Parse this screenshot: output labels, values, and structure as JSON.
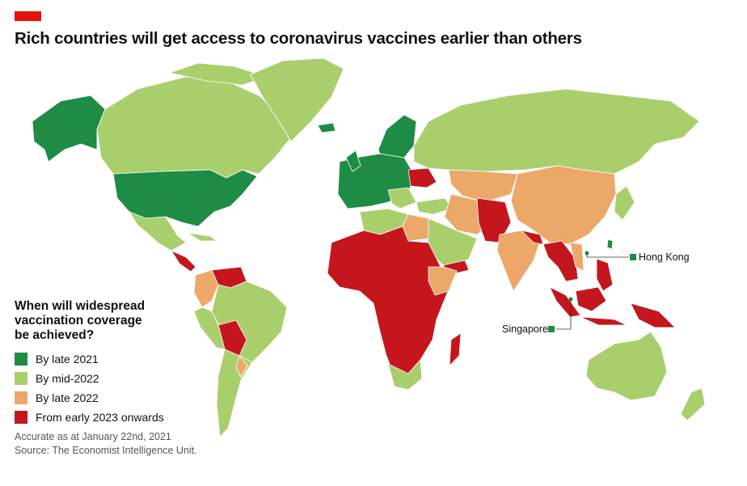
{
  "title": "Rich countries will get access to coronavirus vaccines earlier than others",
  "legend": {
    "heading": "When will widespread\nvaccination coverage\nbe achieved?",
    "items": [
      {
        "label": "By late 2021",
        "color": "#1e8c45"
      },
      {
        "label": "By mid-2022",
        "color": "#a9cf6d"
      },
      {
        "label": "By late 2022",
        "color": "#eca869"
      },
      {
        "label": "From early 2023 onwards",
        "color": "#c4161c"
      }
    ]
  },
  "callouts": {
    "hong_kong": "Hong Kong",
    "singapore": "Singapore"
  },
  "footnote": {
    "accuracy": "Accurate as at January 22nd, 2021",
    "source": "Source: The Economist Intelligence Unit."
  },
  "colors": {
    "brand_red": "#e3120b",
    "ocean": "#ffffff",
    "border": "#ffffff"
  }
}
